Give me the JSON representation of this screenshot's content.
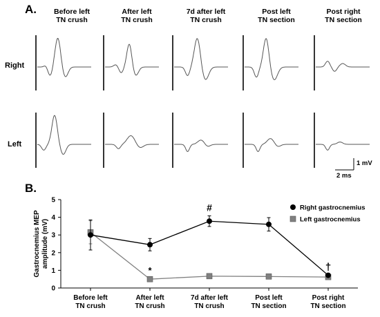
{
  "panel_a": {
    "letter": "A.",
    "columns": [
      "Before left\nTN crush",
      "After left\nTN crush",
      "7d after left\nTN crush",
      "Post left\nTN section",
      "Post right\nTN section"
    ],
    "rows": [
      "Right",
      "Left"
    ],
    "scale": {
      "y_label": "1 mV",
      "x_label": "2 ms"
    }
  },
  "panel_b": {
    "letter": "B."
  },
  "chart_data": {
    "type": "line",
    "categories": [
      "Before left\nTN crush",
      "After left\nTN crush",
      "7d after left\nTN crush",
      "Post left\nTN section",
      "Post right\nTN section"
    ],
    "ylabel": "Gastrocnemius MEP\namplitude (mV)",
    "ylim": [
      0,
      5
    ],
    "yticks": [
      "0",
      "1",
      "2",
      "3",
      "4",
      "5"
    ],
    "grid": false,
    "legend_position": "top-right",
    "series": [
      {
        "name": "Right gastrocnemius",
        "values": [
          3.0,
          2.45,
          3.78,
          3.6,
          0.72
        ],
        "errors": [
          0.85,
          0.35,
          0.3,
          0.38,
          0.07
        ],
        "color": "#000000",
        "marker": "circle"
      },
      {
        "name": "Left gastrocnemius",
        "values": [
          3.15,
          0.5,
          0.67,
          0.65,
          0.62
        ],
        "errors": [
          0.65,
          0.05,
          0.06,
          0.05,
          0.05
        ],
        "color": "#808080",
        "marker": "square"
      }
    ],
    "annotations": [
      {
        "text": "*",
        "category": 1
      },
      {
        "text": "#",
        "category": 2
      },
      {
        "text": "†",
        "category": 4
      }
    ]
  }
}
